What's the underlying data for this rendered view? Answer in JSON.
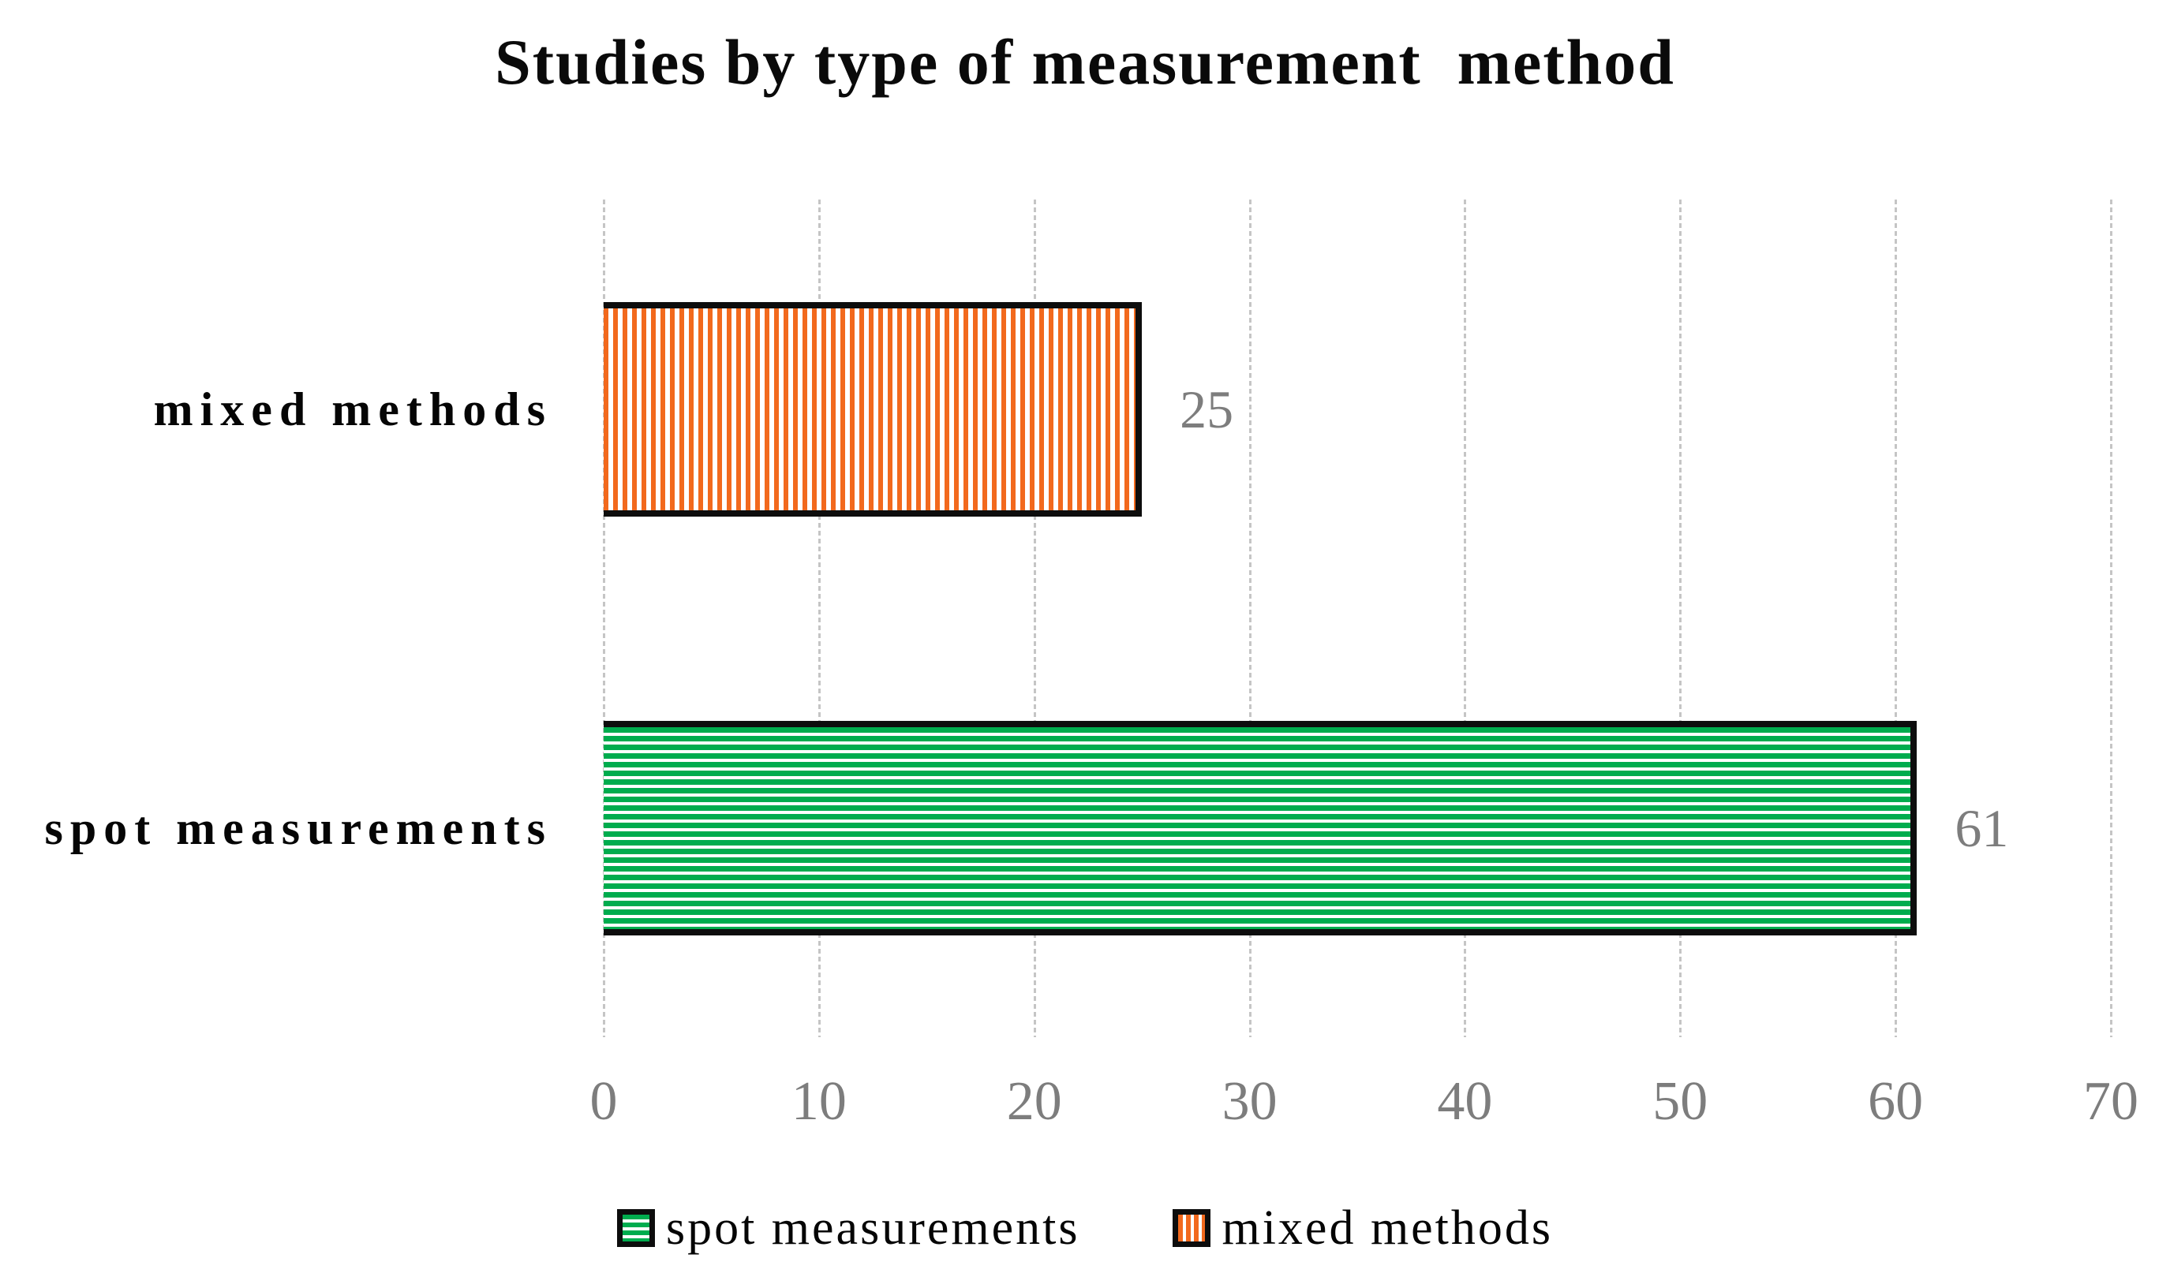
{
  "chart_data": {
    "type": "bar",
    "orientation": "horizontal",
    "title": "Studies by type of measurement  method",
    "xlabel": "",
    "ylabel": "",
    "xlim": [
      0,
      70
    ],
    "x_ticks": [
      0,
      10,
      20,
      30,
      40,
      50,
      60,
      70
    ],
    "grid": "vertical dashed gridlines",
    "legend_position": "bottom",
    "categories": [
      "mixed methods",
      "spot measurements"
    ],
    "values": [
      25,
      61
    ],
    "bars": [
      {
        "category": "mixed methods",
        "value": 25,
        "data_label": "25",
        "pattern": "vertical-stripes",
        "color": "#f2691d"
      },
      {
        "category": "spot measurements",
        "value": 61,
        "data_label": "61",
        "pattern": "horizontal-stripes",
        "color": "#00ac4e"
      }
    ],
    "legend_entries": [
      {
        "label": "spot measurements",
        "pattern": "horizontal-stripes",
        "color": "#00ac4e"
      },
      {
        "label": "mixed methods",
        "pattern": "vertical-stripes",
        "color": "#f2691d"
      }
    ]
  },
  "colors": {
    "orange": "#f2691d",
    "green": "#00ac4e",
    "gridline": "#c5c5c5",
    "axis_text": "#7d7d7d",
    "data_label_text": "#7d7d7d",
    "title_text": "#0a0a0a",
    "bar_border": "#0d0d0d",
    "background": "#ffffff"
  }
}
